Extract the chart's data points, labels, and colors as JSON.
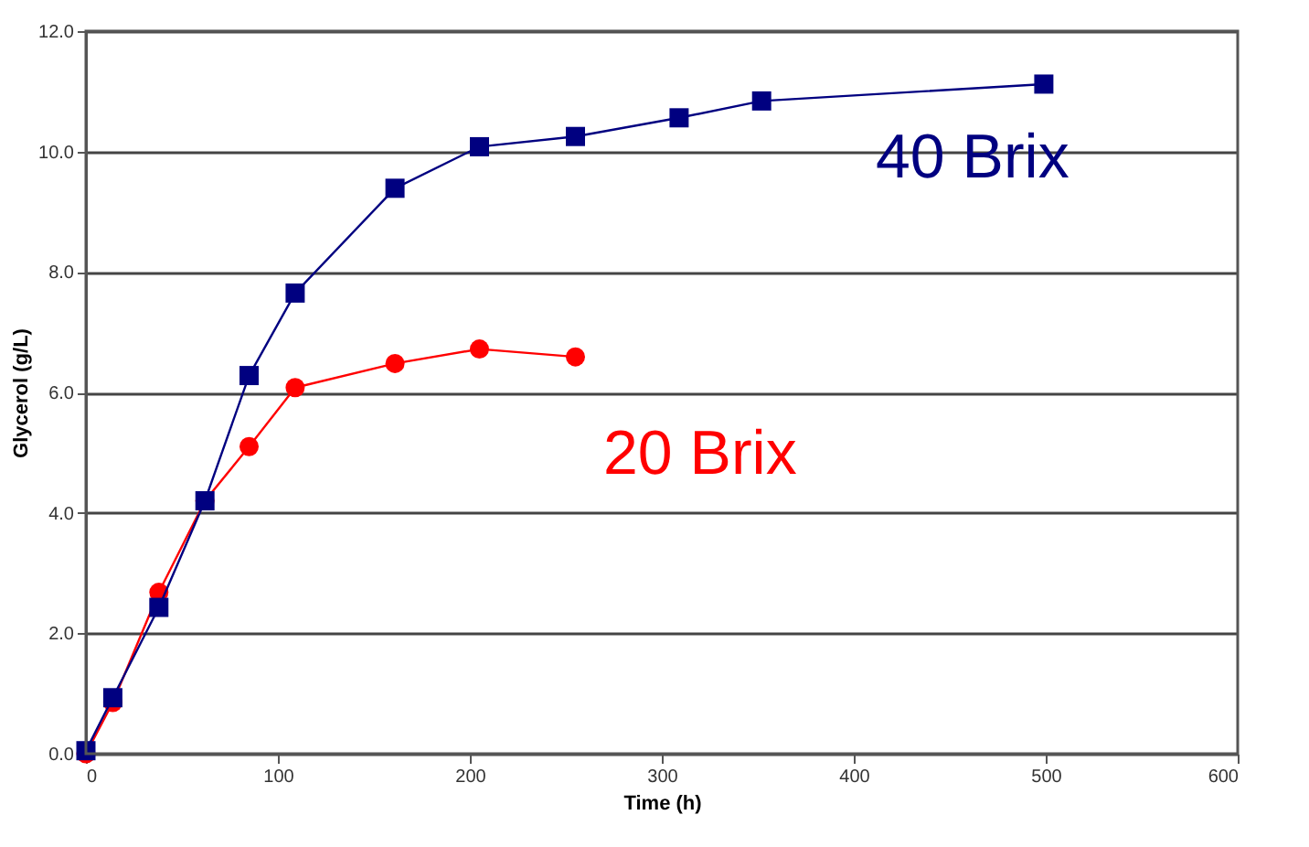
{
  "chart_data": {
    "type": "line",
    "xlabel": "Time (h)",
    "ylabel": "Glycerol (g/L)",
    "xlim": [
      0,
      600
    ],
    "xticks": [
      0,
      100,
      200,
      300,
      400,
      500,
      600
    ],
    "ylim": [
      0,
      12
    ],
    "yticks": [
      {
        "value": 0,
        "label": "0.0"
      },
      {
        "value": 2,
        "label": "2.0"
      },
      {
        "value": 4,
        "label": "4.0"
      },
      {
        "value": 6,
        "label": "6.0"
      },
      {
        "value": 8,
        "label": "8.0"
      },
      {
        "value": 10,
        "label": "10.0"
      },
      {
        "value": 12,
        "label": "12.0"
      }
    ],
    "grid": "y",
    "legend": false,
    "series": [
      {
        "name": "20 Brix",
        "color": "#ff0000",
        "marker": "circle",
        "x": [
          0,
          14,
          38,
          62,
          85,
          109,
          161,
          205,
          255
        ],
        "values": [
          0,
          0.85,
          2.68,
          4.2,
          5.1,
          6.08,
          6.48,
          6.72,
          6.59
        ]
      },
      {
        "name": "40 Brix",
        "color": "#000080",
        "marker": "square",
        "x": [
          0,
          14,
          38,
          62,
          85,
          109,
          161,
          205,
          255,
          309,
          352,
          499
        ],
        "values": [
          0.05,
          0.93,
          2.43,
          4.2,
          6.28,
          7.65,
          9.39,
          10.08,
          10.25,
          10.56,
          10.84,
          11.12
        ]
      }
    ]
  }
}
